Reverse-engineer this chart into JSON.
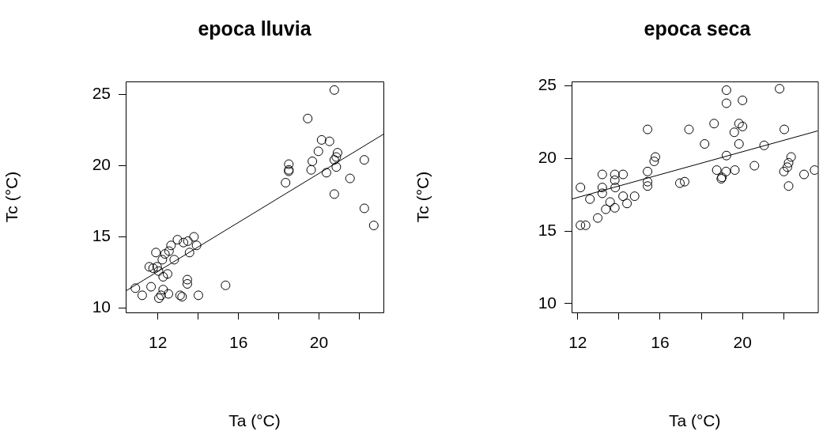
{
  "chart_data": [
    {
      "type": "scatter",
      "title": "epoca lluvia",
      "xlabel": "Ta (°C)",
      "ylabel": "Tc (°C)",
      "xlim": [
        10.4,
        23.2
      ],
      "ylim": [
        9.7,
        25.9
      ],
      "xticks": [
        12,
        {
          "value": 14,
          "label": null
        },
        16,
        {
          "value": 18,
          "label": null
        },
        20,
        {
          "value": 22,
          "label": null
        }
      ],
      "yticks": [
        10,
        15,
        20,
        25
      ],
      "grid": false,
      "legend": false,
      "marker": "circle",
      "series": [
        {
          "type": "scatter",
          "color": "#000000",
          "x": [
            20.76,
            19.44,
            20.13,
            20.52,
            19.97,
            20.92,
            20.86,
            19.67,
            18.5,
            18.5,
            18.5,
            19.61,
            20.76,
            20.86,
            20.37,
            18.34,
            22.25,
            21.54,
            20.76,
            22.25,
            22.72,
            13.79,
            13.49,
            13.27,
            12.97,
            13.92,
            13.57,
            12.65,
            12.35,
            11.9,
            12.81,
            11.57,
            11.76,
            11.96,
            12.03,
            12.48,
            12.26,
            13.46,
            13.46,
            15.36,
            10.88,
            11.66,
            11.22,
            12.26,
            12.52,
            12.05,
            12.16,
            13.1,
            13.2,
            14.01,
            12.22,
            12.55
          ],
          "values": [
            25.3,
            23.3,
            21.8,
            21.7,
            21.0,
            20.9,
            20.6,
            20.3,
            20.1,
            19.7,
            19.6,
            19.7,
            20.4,
            19.9,
            19.5,
            18.8,
            20.4,
            19.1,
            18.0,
            17.0,
            15.8,
            15.0,
            14.7,
            14.6,
            14.8,
            14.4,
            13.9,
            14.4,
            13.8,
            13.9,
            13.4,
            12.9,
            12.8,
            12.9,
            12.6,
            12.4,
            12.2,
            12.0,
            11.7,
            11.6,
            11.4,
            11.5,
            10.9,
            11.3,
            11.0,
            10.7,
            10.9,
            10.9,
            10.8,
            10.9,
            13.4,
            14.0
          ]
        },
        {
          "type": "line",
          "marker": "none",
          "color": "#000000",
          "x": [
            10.4,
            23.2
          ],
          "values": [
            11.2,
            22.2
          ]
        }
      ]
    },
    {
      "type": "scatter",
      "title": "epoca seca",
      "xlabel": "Ta (°C)",
      "ylabel": "Tc (°C)",
      "xlim": [
        11.7,
        23.66
      ],
      "ylim": [
        9.4,
        25.3
      ],
      "xticks": [
        12,
        {
          "value": 14,
          "label": null
        },
        16,
        {
          "value": 18,
          "label": null
        },
        20,
        {
          "value": 22,
          "label": null
        }
      ],
      "yticks": [
        10,
        15,
        20,
        25
      ],
      "grid": false,
      "legend": false,
      "marker": "circle",
      "series": [
        {
          "type": "scatter",
          "color": "#000000",
          "x": [
            21.8,
            19.22,
            19.22,
            20.0,
            18.62,
            15.39,
            17.4,
            19.83,
            20.0,
            19.6,
            22.03,
            18.16,
            19.83,
            21.05,
            19.22,
            15.77,
            15.71,
            22.36,
            22.24,
            22.18,
            22.01,
            20.58,
            19.63,
            18.75,
            19.0,
            19.2,
            18.97,
            22.99,
            23.5,
            22.24,
            15.39,
            15.39,
            15.39,
            16.96,
            17.19,
            13.19,
            13.8,
            14.2,
            13.8,
            13.19,
            13.82,
            12.13,
            13.19,
            12.59,
            13.57,
            14.2,
            14.76,
            14.39,
            13.8,
            13.36,
            12.97,
            12.13,
            12.38
          ],
          "values": [
            24.8,
            24.7,
            23.8,
            24.0,
            22.4,
            22.0,
            22.0,
            22.4,
            22.2,
            21.8,
            22.0,
            21.0,
            21.0,
            20.9,
            20.2,
            20.1,
            19.8,
            20.1,
            19.7,
            19.4,
            19.1,
            19.5,
            19.2,
            19.2,
            18.7,
            19.1,
            18.6,
            18.9,
            19.2,
            18.1,
            19.1,
            18.4,
            18.1,
            18.3,
            18.4,
            18.9,
            18.9,
            18.9,
            18.5,
            18.0,
            18.0,
            18.0,
            17.6,
            17.2,
            17.0,
            17.4,
            17.4,
            16.9,
            16.6,
            16.5,
            15.9,
            15.4,
            15.4
          ]
        },
        {
          "type": "line",
          "marker": "none",
          "color": "#000000",
          "x": [
            11.7,
            23.66
          ],
          "values": [
            17.2,
            21.9
          ]
        }
      ]
    }
  ]
}
